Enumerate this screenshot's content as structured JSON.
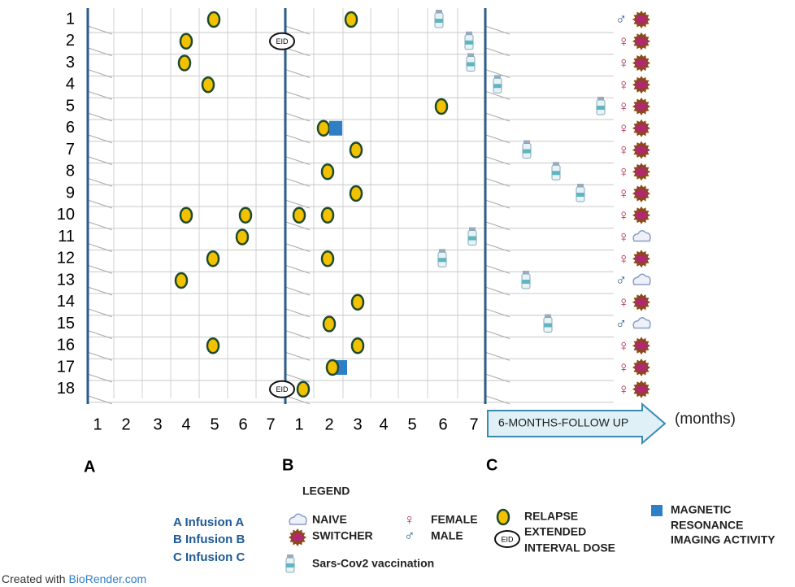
{
  "rows": [
    {
      "label": "1",
      "sex": "♂"
    },
    {
      "label": "2",
      "sex": "♀"
    },
    {
      "label": "3",
      "sex": "♀"
    },
    {
      "label": "4",
      "sex": "♀"
    },
    {
      "label": "5",
      "sex": "♀"
    },
    {
      "label": "6",
      "sex": "♀"
    },
    {
      "label": "7",
      "sex": "♀"
    },
    {
      "label": "8",
      "sex": "♀"
    },
    {
      "label": "9",
      "sex": "♀"
    },
    {
      "label": "10",
      "sex": "♀"
    },
    {
      "label": "11",
      "sex": "♀"
    },
    {
      "label": "12",
      "sex": "♀"
    },
    {
      "label": "13",
      "sex": "♂"
    },
    {
      "label": "14",
      "sex": "♀"
    },
    {
      "label": "15",
      "sex": "♂"
    },
    {
      "label": "16",
      "sex": "♀"
    },
    {
      "label": "17",
      "sex": "♀"
    },
    {
      "label": "18",
      "sex": "♀"
    }
  ],
  "eid_mark": "EID",
  "months_a": [
    "1",
    "2",
    "3",
    "4",
    "5",
    "6",
    "7"
  ],
  "months_b": [
    "1",
    "2",
    "3",
    "4",
    "5",
    "6",
    "7"
  ],
  "follow_up": "6-MONTHS-FOLLOW UP",
  "unit": "(months)",
  "sections": [
    "A",
    "B",
    "C"
  ],
  "legend": {
    "title": "LEGEND",
    "infusions": [
      "A Infusion A",
      "B  Infusion B",
      "C  Infusion C"
    ],
    "naive": "NAIVE",
    "switcher": "SWITCHER",
    "female": "FEMALE",
    "male": "MALE",
    "relapse": "RELAPSE",
    "eid": [
      "EXTENDED",
      "INTERVAL DOSE"
    ],
    "vaccination": "Sars-Cov2 vaccination",
    "mri": [
      "MAGNETIC",
      "RESONANCE",
      "IMAGING ACTIVITY"
    ]
  },
  "footer": {
    "prefix": "Created with ",
    "link": "BioRender.com"
  }
}
